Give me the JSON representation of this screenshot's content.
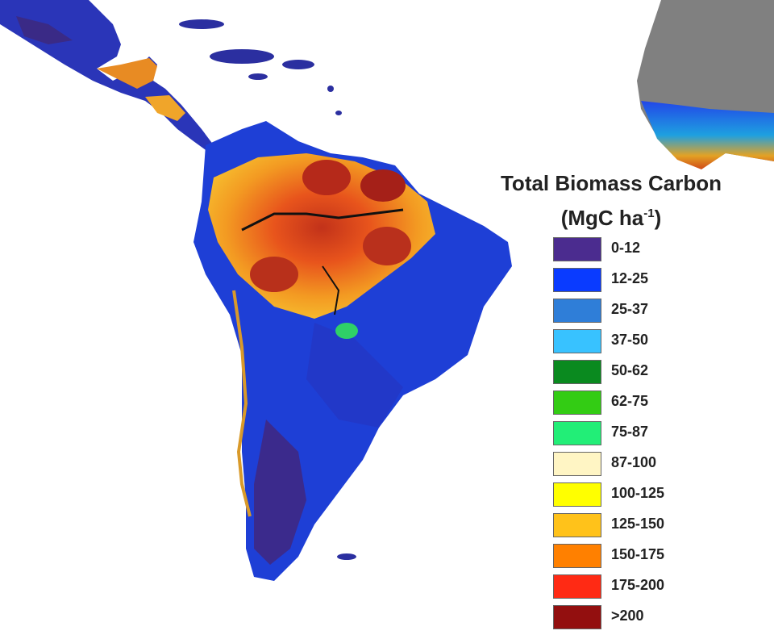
{
  "map": {
    "title": "Total Biomass Carbon",
    "unit_prefix": "(MgC ha",
    "unit_exp": "-1",
    "unit_suffix": ")",
    "colors": {
      "ocean": "#ffffff",
      "africa_land": "#808080",
      "land_low": "#3b2a8c",
      "land_mid": "#1a3fe0",
      "land_high": "#e86a1a",
      "land_peak": "#a31c12",
      "river_black": "#111111"
    },
    "legend": [
      {
        "label": "0-12",
        "color": "#4b2c8f"
      },
      {
        "label": "12-25",
        "color": "#0a3bff"
      },
      {
        "label": "25-37",
        "color": "#2f7ed8"
      },
      {
        "label": "37-50",
        "color": "#38c2ff"
      },
      {
        "label": "50-62",
        "color": "#0a8a1f"
      },
      {
        "label": "62-75",
        "color": "#33cc14"
      },
      {
        "label": "75-87",
        "color": "#22ee77"
      },
      {
        "label": "87-100",
        "color": "#fff5c4"
      },
      {
        "label": "100-125",
        "color": "#ffff00"
      },
      {
        "label": "125-150",
        "color": "#ffc21a"
      },
      {
        "label": "150-175",
        "color": "#ff8000"
      },
      {
        "label": "175-200",
        "color": "#ff2a14"
      },
      {
        "label": ">200",
        "color": "#930f0f"
      }
    ]
  }
}
